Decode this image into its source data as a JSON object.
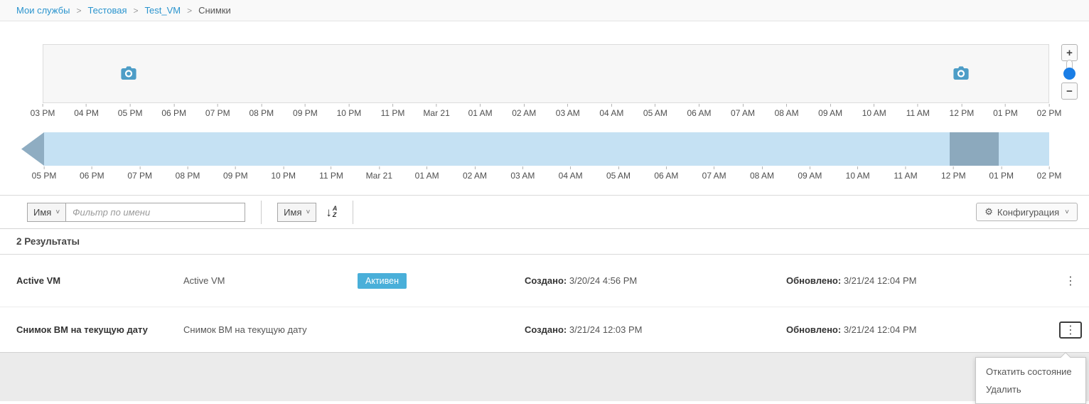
{
  "breadcrumb": {
    "separator": ">",
    "items": [
      {
        "label": "Мои службы"
      },
      {
        "label": "Тестовая"
      },
      {
        "label": "Test_VM"
      },
      {
        "label": "Снимки"
      }
    ]
  },
  "timeline": {
    "chart_data": {
      "type": "timeline",
      "top_axis_ticks": [
        "03 PM",
        "04 PM",
        "05 PM",
        "06 PM",
        "07 PM",
        "08 PM",
        "09 PM",
        "10 PM",
        "11 PM",
        "Mar 21",
        "01 AM",
        "02 AM",
        "03 AM",
        "04 AM",
        "05 AM",
        "06 AM",
        "07 AM",
        "08 AM",
        "09 AM",
        "10 AM",
        "11 AM",
        "12 PM",
        "01 PM",
        "02 PM"
      ],
      "bottom_axis_ticks": [
        "05 PM",
        "06 PM",
        "07 PM",
        "08 PM",
        "09 PM",
        "10 PM",
        "11 PM",
        "Mar 21",
        "01 AM",
        "02 AM",
        "03 AM",
        "04 AM",
        "05 AM",
        "06 AM",
        "07 AM",
        "08 AM",
        "09 AM",
        "10 AM",
        "11 AM",
        "12 PM",
        "01 PM",
        "02 PM"
      ],
      "snapshot_events": [
        {
          "name": "snapshot-camera",
          "position_pct": 8.5
        },
        {
          "name": "snapshot-camera",
          "position_pct": 91.3
        }
      ],
      "selection_region": {
        "start_pct": 90.1,
        "end_pct": 95.0
      },
      "colors": {
        "band": "#c5e1f3",
        "selection": "#8ca9bd",
        "camera": "#4d9dc7",
        "slider_knob": "#1a7ee6",
        "badge": "#49afd9"
      }
    },
    "zoom_controls": {
      "zoom_in": "+",
      "zoom_out": "−"
    }
  },
  "toolbar": {
    "filter_field_selector": "Имя",
    "filter_placeholder": "Фильтр по имени",
    "filter_value": "",
    "sort_field_selector": "Имя",
    "config_button": "Конфигурация"
  },
  "results": {
    "count_label": "2 Результаты",
    "field_labels": {
      "created": "Создано:",
      "updated": "Обновлено:"
    },
    "rows": [
      {
        "name": "Active VM",
        "description": "Active VM",
        "status": "Активен",
        "created": "3/20/24 4:56 PM",
        "updated": "3/21/24 12:04 PM"
      },
      {
        "name": "Снимок ВМ на текущую дату",
        "description": "Снимок ВМ на текущую дату",
        "status": "",
        "created": "3/21/24 12:03 PM",
        "updated": "3/21/24 12:04 PM"
      }
    ]
  },
  "context_menu": {
    "items": [
      "Откатить состояние",
      "Удалить"
    ]
  }
}
